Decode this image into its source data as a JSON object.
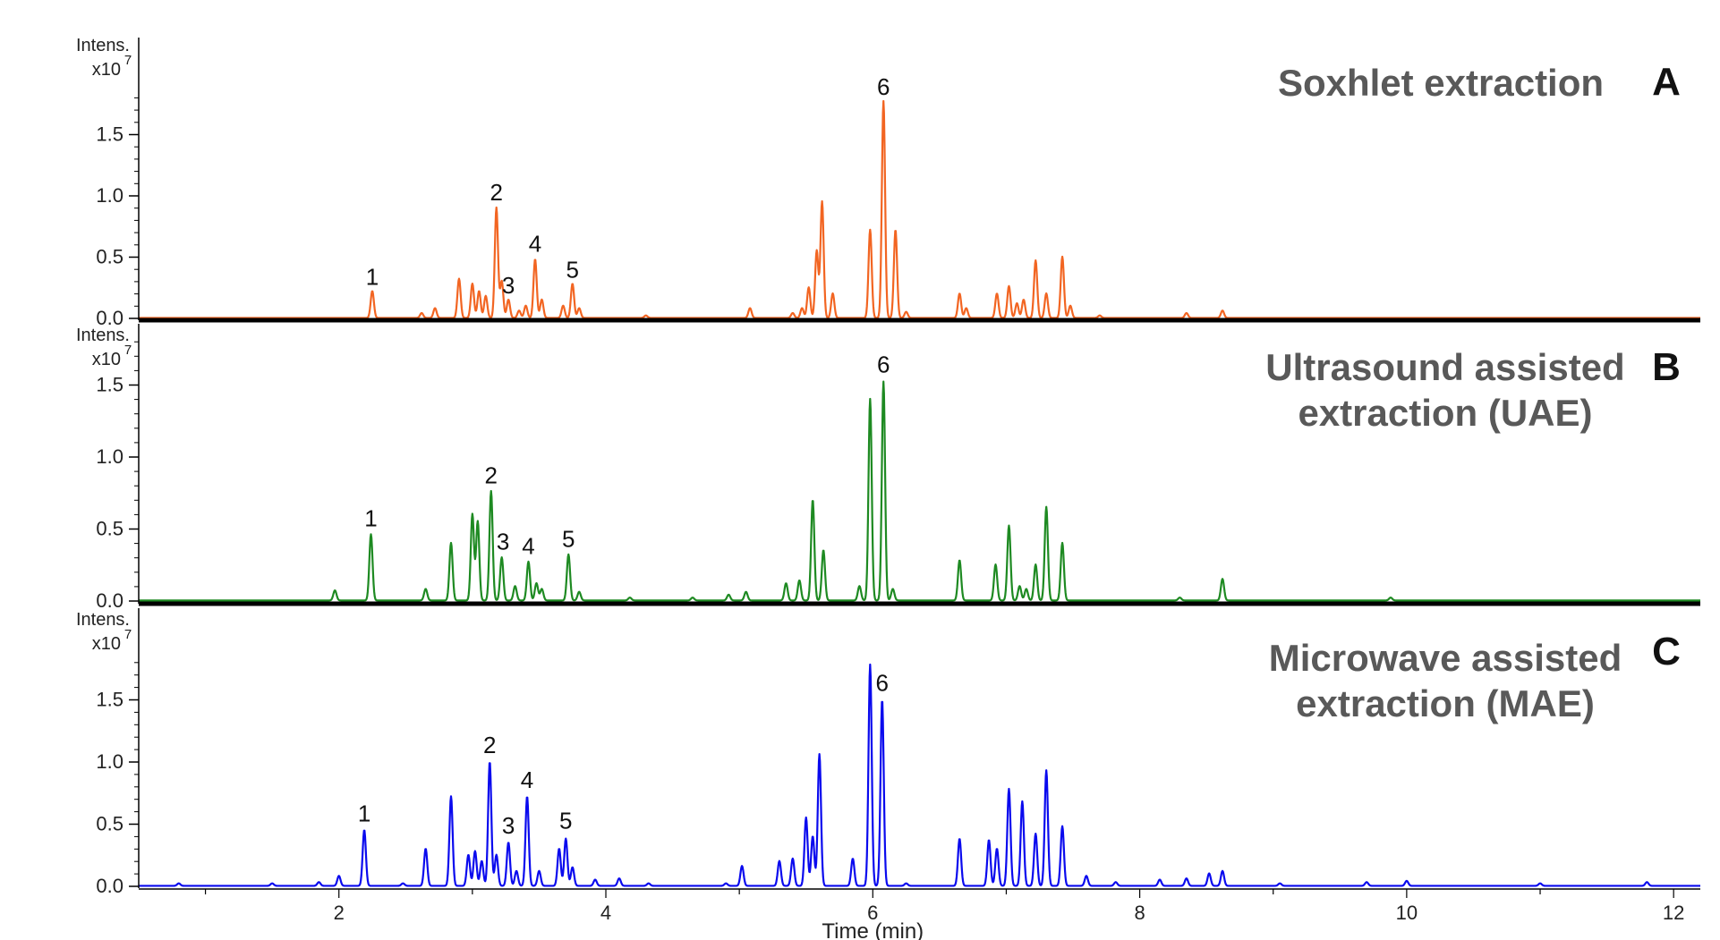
{
  "chart_data": {
    "type": "line",
    "xlabel": "Time (min)",
    "xlim": [
      0.5,
      12.2
    ],
    "x_ticks": [
      2,
      4,
      6,
      8,
      10,
      12
    ],
    "y_ticks": [
      0.0,
      0.5,
      1.0,
      1.5
    ],
    "y_axis_label": "Intens.",
    "y_scale_base": "x10",
    "y_scale_exp": "7",
    "panels": [
      {
        "letter": "A",
        "title_lines": [
          "Soxhlet extraction"
        ],
        "color": "#f26522",
        "ylim": [
          0,
          2.3
        ],
        "peak_labels": [
          {
            "text": "1",
            "x": 2.25,
            "y": 0.23
          },
          {
            "text": "2",
            "x": 3.18,
            "y": 0.92
          },
          {
            "text": "3",
            "x": 3.27,
            "y": 0.16
          },
          {
            "text": "4",
            "x": 3.47,
            "y": 0.5
          },
          {
            "text": "5",
            "x": 3.75,
            "y": 0.29
          },
          {
            "text": "6",
            "x": 6.08,
            "y": 1.78
          }
        ],
        "peaks": [
          [
            2.25,
            0.22
          ],
          [
            2.62,
            0.04
          ],
          [
            2.72,
            0.08
          ],
          [
            2.9,
            0.32
          ],
          [
            3.0,
            0.28
          ],
          [
            3.05,
            0.22
          ],
          [
            3.1,
            0.18
          ],
          [
            3.18,
            0.9
          ],
          [
            3.22,
            0.3
          ],
          [
            3.27,
            0.15
          ],
          [
            3.35,
            0.06
          ],
          [
            3.4,
            0.1
          ],
          [
            3.47,
            0.48
          ],
          [
            3.52,
            0.15
          ],
          [
            3.68,
            0.1
          ],
          [
            3.75,
            0.28
          ],
          [
            3.8,
            0.08
          ],
          [
            4.3,
            0.02
          ],
          [
            5.08,
            0.08
          ],
          [
            5.4,
            0.04
          ],
          [
            5.47,
            0.08
          ],
          [
            5.52,
            0.25
          ],
          [
            5.58,
            0.55
          ],
          [
            5.62,
            0.95
          ],
          [
            5.7,
            0.2
          ],
          [
            5.98,
            0.72
          ],
          [
            6.08,
            1.77
          ],
          [
            6.17,
            0.72
          ],
          [
            6.25,
            0.05
          ],
          [
            6.65,
            0.2
          ],
          [
            6.7,
            0.08
          ],
          [
            6.93,
            0.2
          ],
          [
            7.02,
            0.26
          ],
          [
            7.08,
            0.12
          ],
          [
            7.13,
            0.15
          ],
          [
            7.22,
            0.47
          ],
          [
            7.3,
            0.2
          ],
          [
            7.42,
            0.5
          ],
          [
            7.48,
            0.1
          ],
          [
            7.7,
            0.02
          ],
          [
            8.35,
            0.04
          ],
          [
            8.62,
            0.06
          ]
        ]
      },
      {
        "letter": "B",
        "title_lines": [
          "Ultrasound assisted",
          "extraction (UAE)"
        ],
        "color": "#1e8a22",
        "ylim": [
          0,
          1.9
        ],
        "peak_labels": [
          {
            "text": "1",
            "x": 2.24,
            "y": 0.48
          },
          {
            "text": "2",
            "x": 3.14,
            "y": 0.78
          },
          {
            "text": "3",
            "x": 3.23,
            "y": 0.32
          },
          {
            "text": "4",
            "x": 3.42,
            "y": 0.29
          },
          {
            "text": "5",
            "x": 3.72,
            "y": 0.34
          },
          {
            "text": "6",
            "x": 6.08,
            "y": 1.55
          }
        ],
        "peaks": [
          [
            1.97,
            0.07
          ],
          [
            2.24,
            0.46
          ],
          [
            2.65,
            0.08
          ],
          [
            2.84,
            0.4
          ],
          [
            3.0,
            0.6
          ],
          [
            3.04,
            0.55
          ],
          [
            3.14,
            0.76
          ],
          [
            3.22,
            0.3
          ],
          [
            3.32,
            0.1
          ],
          [
            3.42,
            0.27
          ],
          [
            3.48,
            0.12
          ],
          [
            3.52,
            0.08
          ],
          [
            3.72,
            0.32
          ],
          [
            3.8,
            0.06
          ],
          [
            4.18,
            0.02
          ],
          [
            4.65,
            0.02
          ],
          [
            4.92,
            0.04
          ],
          [
            5.05,
            0.06
          ],
          [
            5.35,
            0.12
          ],
          [
            5.45,
            0.14
          ],
          [
            5.55,
            0.7
          ],
          [
            5.63,
            0.35
          ],
          [
            5.9,
            0.1
          ],
          [
            5.98,
            1.4
          ],
          [
            6.08,
            1.52
          ],
          [
            6.15,
            0.08
          ],
          [
            6.65,
            0.28
          ],
          [
            6.92,
            0.25
          ],
          [
            7.02,
            0.52
          ],
          [
            7.1,
            0.1
          ],
          [
            7.15,
            0.08
          ],
          [
            7.22,
            0.25
          ],
          [
            7.3,
            0.65
          ],
          [
            7.42,
            0.4
          ],
          [
            8.3,
            0.02
          ],
          [
            8.62,
            0.15
          ],
          [
            9.88,
            0.02
          ]
        ]
      },
      {
        "letter": "C",
        "title_lines": [
          "Microwave assisted",
          "extraction (MAE)"
        ],
        "color": "#0a0aee",
        "ylim": [
          0,
          2.0
        ],
        "peak_labels": [
          {
            "text": "1",
            "x": 2.19,
            "y": 0.48
          },
          {
            "text": "2",
            "x": 3.13,
            "y": 1.03
          },
          {
            "text": "3",
            "x": 3.27,
            "y": 0.38
          },
          {
            "text": "4",
            "x": 3.41,
            "y": 0.75
          },
          {
            "text": "5",
            "x": 3.7,
            "y": 0.42
          },
          {
            "text": "6",
            "x": 6.07,
            "y": 1.53
          }
        ],
        "peaks": [
          [
            0.8,
            0.02
          ],
          [
            1.5,
            0.02
          ],
          [
            1.85,
            0.03
          ],
          [
            2.0,
            0.08
          ],
          [
            2.19,
            0.45
          ],
          [
            2.48,
            0.02
          ],
          [
            2.65,
            0.3
          ],
          [
            2.84,
            0.72
          ],
          [
            2.97,
            0.25
          ],
          [
            3.02,
            0.28
          ],
          [
            3.07,
            0.2
          ],
          [
            3.13,
            1.0
          ],
          [
            3.18,
            0.25
          ],
          [
            3.27,
            0.35
          ],
          [
            3.33,
            0.12
          ],
          [
            3.41,
            0.72
          ],
          [
            3.5,
            0.12
          ],
          [
            3.65,
            0.3
          ],
          [
            3.7,
            0.38
          ],
          [
            3.75,
            0.15
          ],
          [
            3.92,
            0.05
          ],
          [
            4.1,
            0.06
          ],
          [
            4.32,
            0.02
          ],
          [
            4.9,
            0.02
          ],
          [
            5.02,
            0.16
          ],
          [
            5.3,
            0.2
          ],
          [
            5.4,
            0.22
          ],
          [
            5.5,
            0.55
          ],
          [
            5.55,
            0.4
          ],
          [
            5.6,
            1.06
          ],
          [
            5.85,
            0.22
          ],
          [
            5.98,
            1.78
          ],
          [
            6.07,
            1.5
          ],
          [
            6.25,
            0.02
          ],
          [
            6.65,
            0.38
          ],
          [
            6.87,
            0.37
          ],
          [
            6.93,
            0.3
          ],
          [
            7.02,
            0.78
          ],
          [
            7.12,
            0.68
          ],
          [
            7.22,
            0.42
          ],
          [
            7.3,
            0.93
          ],
          [
            7.42,
            0.48
          ],
          [
            7.6,
            0.08
          ],
          [
            7.82,
            0.03
          ],
          [
            8.15,
            0.05
          ],
          [
            8.35,
            0.06
          ],
          [
            8.52,
            0.1
          ],
          [
            8.62,
            0.12
          ],
          [
            9.05,
            0.02
          ],
          [
            9.7,
            0.03
          ],
          [
            10.0,
            0.04
          ],
          [
            11.0,
            0.02
          ],
          [
            11.8,
            0.03
          ]
        ]
      }
    ]
  }
}
